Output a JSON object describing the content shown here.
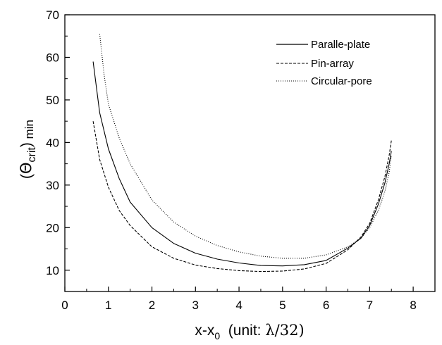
{
  "chart_data": {
    "type": "line",
    "xlim": [
      0,
      8.5
    ],
    "ylim": [
      5,
      70
    ],
    "x_ticks": [
      0,
      1,
      2,
      3,
      4,
      5,
      6,
      7,
      8
    ],
    "y_ticks": [
      10,
      20,
      30,
      40,
      50,
      60,
      70
    ],
    "x_tick_labels": [
      "0",
      "1",
      "2",
      "3",
      "4",
      "5",
      "6",
      "7",
      "8"
    ],
    "y_tick_labels": [
      "10",
      "20",
      "30",
      "40",
      "50",
      "60",
      "70"
    ],
    "xlabel": {
      "main": "x-x",
      "sub": "0",
      "rest": "  (unit: ",
      "lambda": "λ",
      "tail": "/32)"
    },
    "ylabel": {
      "open": "(",
      "theta": "Θ",
      "sub": "crit",
      "close": ")",
      "tail": " min"
    },
    "legend_position": "top-right",
    "series": [
      {
        "name": "Paralle-plate",
        "style": "solid",
        "x": [
          0.65,
          0.8,
          1.0,
          1.25,
          1.5,
          2.0,
          2.5,
          3.0,
          3.5,
          4.0,
          4.5,
          5.0,
          5.5,
          6.0,
          6.5,
          6.8,
          7.0,
          7.2,
          7.35,
          7.45,
          7.5
        ],
        "y": [
          59,
          47,
          38.5,
          31.5,
          26,
          20,
          16.3,
          14,
          12.6,
          11.7,
          11.1,
          11.0,
          11.3,
          12.3,
          15.2,
          17.5,
          20.5,
          25.5,
          30.5,
          35,
          38
        ]
      },
      {
        "name": "Pin-array",
        "style": "dashed",
        "x": [
          0.65,
          0.8,
          1.0,
          1.25,
          1.5,
          2.0,
          2.5,
          3.0,
          3.5,
          4.0,
          4.5,
          5.0,
          5.5,
          6.0,
          6.5,
          6.8,
          7.0,
          7.2,
          7.35,
          7.45,
          7.5
        ],
        "y": [
          45,
          36,
          29.5,
          24,
          20.5,
          15.5,
          12.8,
          11.2,
          10.4,
          9.9,
          9.7,
          9.8,
          10.3,
          11.6,
          14.8,
          17.8,
          21,
          26.5,
          32,
          37,
          40.5
        ]
      },
      {
        "name": "Circular-pore",
        "style": "dotted",
        "x": [
          0.8,
          0.9,
          1.0,
          1.25,
          1.5,
          2.0,
          2.5,
          3.0,
          3.5,
          4.0,
          4.5,
          5.0,
          5.5,
          6.0,
          6.5,
          6.8,
          7.0,
          7.2,
          7.35,
          7.45,
          7.5
        ],
        "y": [
          65.5,
          56,
          49,
          41,
          35,
          26.5,
          21.3,
          18,
          15.8,
          14.3,
          13.3,
          12.8,
          12.8,
          13.6,
          15.5,
          17.5,
          20,
          24,
          28.5,
          33,
          37
        ]
      }
    ]
  }
}
